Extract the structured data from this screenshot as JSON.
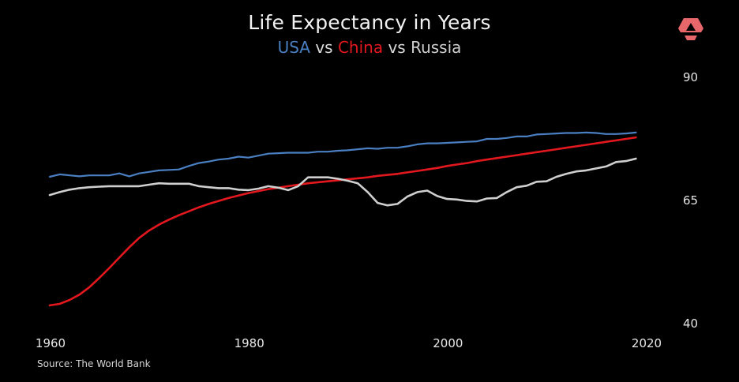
{
  "header": {
    "title": "Life Expectancy in Years",
    "subtitle_usa": "USA",
    "subtitle_vs1": " vs ",
    "subtitle_china": "China",
    "subtitle_vs2": " vs ",
    "subtitle_russia": "Russia"
  },
  "footer": {
    "source": "Source: The World Bank"
  },
  "logo": {
    "icon": "red-hexagon-triangle-logo-icon",
    "color": "#e8676b"
  },
  "colors": {
    "background": "#000000",
    "usa": "#4a7fc1",
    "china": "#e3181e",
    "russia": "#cfcfcf"
  },
  "chart_data": {
    "type": "line",
    "title": "Life Expectancy in Years",
    "subtitle": "USA vs China vs Russia",
    "xlabel": "",
    "ylabel": "",
    "xlim": [
      1960,
      2020
    ],
    "ylim": [
      40,
      90
    ],
    "x_ticks": [
      1960,
      1980,
      2000,
      2020
    ],
    "y_ticks": [
      40,
      65,
      90
    ],
    "y_axis_side": "right",
    "grid": false,
    "x": [
      1960,
      1961,
      1962,
      1963,
      1964,
      1965,
      1966,
      1967,
      1968,
      1969,
      1970,
      1971,
      1972,
      1973,
      1974,
      1975,
      1976,
      1977,
      1978,
      1979,
      1980,
      1981,
      1982,
      1983,
      1984,
      1985,
      1986,
      1987,
      1988,
      1989,
      1990,
      1991,
      1992,
      1993,
      1994,
      1995,
      1996,
      1997,
      1998,
      1999,
      2000,
      2001,
      2002,
      2003,
      2004,
      2005,
      2006,
      2007,
      2008,
      2009,
      2010,
      2011,
      2012,
      2013,
      2014,
      2015,
      2016,
      2017,
      2018,
      2019
    ],
    "series": [
      {
        "name": "USA",
        "color": "#4a7fc1",
        "values": [
          69.8,
          70.3,
          70.1,
          69.9,
          70.1,
          70.1,
          70.1,
          70.5,
          69.9,
          70.5,
          70.8,
          71.1,
          71.2,
          71.3,
          72.0,
          72.6,
          72.9,
          73.3,
          73.5,
          73.9,
          73.7,
          74.1,
          74.5,
          74.6,
          74.7,
          74.7,
          74.7,
          74.9,
          74.9,
          75.1,
          75.2,
          75.4,
          75.6,
          75.5,
          75.7,
          75.7,
          76.0,
          76.4,
          76.6,
          76.6,
          76.7,
          76.8,
          76.9,
          77.0,
          77.5,
          77.5,
          77.7,
          78.0,
          78.0,
          78.4,
          78.5,
          78.6,
          78.7,
          78.7,
          78.8,
          78.7,
          78.5,
          78.5,
          78.6,
          78.8
        ]
      },
      {
        "name": "China",
        "color": "#e3181e",
        "values": [
          43.7,
          44.0,
          44.8,
          45.9,
          47.4,
          49.3,
          51.3,
          53.4,
          55.5,
          57.4,
          58.9,
          60.1,
          61.1,
          62.0,
          62.8,
          63.6,
          64.3,
          64.9,
          65.5,
          66.0,
          66.5,
          66.9,
          67.3,
          67.6,
          67.9,
          68.2,
          68.5,
          68.7,
          68.9,
          69.1,
          69.3,
          69.5,
          69.7,
          70.0,
          70.2,
          70.4,
          70.7,
          71.0,
          71.3,
          71.6,
          72.0,
          72.3,
          72.6,
          73.0,
          73.3,
          73.6,
          73.9,
          74.2,
          74.5,
          74.8,
          75.1,
          75.4,
          75.7,
          76.0,
          76.3,
          76.6,
          76.9,
          77.2,
          77.5,
          77.8
        ]
      },
      {
        "name": "Russia",
        "color": "#cfcfcf",
        "values": [
          66.1,
          66.7,
          67.2,
          67.5,
          67.7,
          67.8,
          67.9,
          67.9,
          67.9,
          67.9,
          68.2,
          68.5,
          68.4,
          68.4,
          68.4,
          67.9,
          67.7,
          67.5,
          67.5,
          67.2,
          67.1,
          67.4,
          67.9,
          67.6,
          67.1,
          67.9,
          69.7,
          69.7,
          69.7,
          69.4,
          69.0,
          68.5,
          66.7,
          64.5,
          64.0,
          64.3,
          65.8,
          66.7,
          67.0,
          65.9,
          65.3,
          65.2,
          64.9,
          64.8,
          65.4,
          65.5,
          66.7,
          67.7,
          68.0,
          68.8,
          68.9,
          69.8,
          70.4,
          70.9,
          71.1,
          71.5,
          71.9,
          72.8,
          73.0,
          73.5
        ]
      }
    ]
  }
}
